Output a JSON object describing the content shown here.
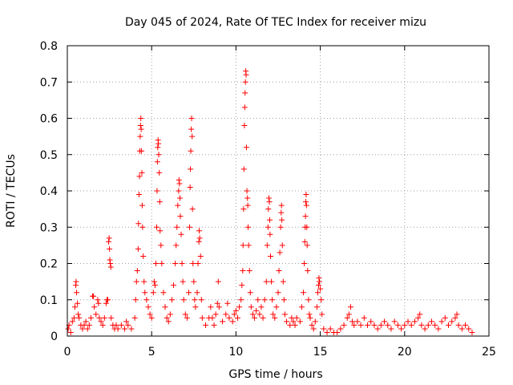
{
  "chart_data": {
    "type": "scatter",
    "title": "Day 045 of 2024, Rate Of TEC Index for receiver mizu",
    "xlabel": "GPS time / hours",
    "ylabel": "ROTI / TECUs",
    "xlim": [
      0,
      25
    ],
    "ylim": [
      0,
      0.8
    ],
    "xticks": [
      0,
      5,
      10,
      15,
      20,
      25
    ],
    "yticks": [
      0,
      0.1,
      0.2,
      0.3,
      0.4,
      0.5,
      0.6,
      0.7,
      0.8
    ],
    "xtick_labels": [
      "0",
      "5",
      "10",
      "15",
      "20",
      "25"
    ],
    "ytick_labels": [
      "0",
      "0.1",
      "0.2",
      "0.3",
      "0.4",
      "0.5",
      "0.6",
      "0.7",
      "0.8"
    ],
    "grid": true,
    "marker": "+",
    "color": "#ff0000",
    "series": [
      {
        "name": "ROTI",
        "points": [
          [
            0.05,
            0.02
          ],
          [
            0.1,
            0.03
          ],
          [
            0.2,
            0.01
          ],
          [
            0.3,
            0.04
          ],
          [
            0.4,
            0.05
          ],
          [
            0.45,
            0.08
          ],
          [
            0.5,
            0.14
          ],
          [
            0.52,
            0.15
          ],
          [
            0.55,
            0.12
          ],
          [
            0.6,
            0.09
          ],
          [
            0.65,
            0.06
          ],
          [
            0.7,
            0.05
          ],
          [
            0.8,
            0.03
          ],
          [
            0.9,
            0.02
          ],
          [
            1.0,
            0.03
          ],
          [
            1.1,
            0.04
          ],
          [
            1.2,
            0.02
          ],
          [
            1.3,
            0.03
          ],
          [
            1.4,
            0.05
          ],
          [
            1.5,
            0.11
          ],
          [
            1.55,
            0.11
          ],
          [
            1.6,
            0.08
          ],
          [
            1.7,
            0.06
          ],
          [
            1.8,
            0.1
          ],
          [
            1.85,
            0.09
          ],
          [
            1.9,
            0.05
          ],
          [
            2.0,
            0.04
          ],
          [
            2.1,
            0.03
          ],
          [
            2.2,
            0.05
          ],
          [
            2.3,
            0.09
          ],
          [
            2.35,
            0.1
          ],
          [
            2.4,
            0.1
          ],
          [
            2.45,
            0.26
          ],
          [
            2.48,
            0.27
          ],
          [
            2.5,
            0.24
          ],
          [
            2.52,
            0.21
          ],
          [
            2.55,
            0.2
          ],
          [
            2.58,
            0.19
          ],
          [
            2.6,
            0.05
          ],
          [
            2.7,
            0.03
          ],
          [
            2.8,
            0.02
          ],
          [
            2.9,
            0.03
          ],
          [
            3.0,
            0.02
          ],
          [
            3.2,
            0.03
          ],
          [
            3.4,
            0.02
          ],
          [
            3.5,
            0.04
          ],
          [
            3.6,
            0.03
          ],
          [
            3.8,
            0.02
          ],
          [
            4.0,
            0.05
          ],
          [
            4.05,
            0.1
          ],
          [
            4.1,
            0.15
          ],
          [
            4.15,
            0.18
          ],
          [
            4.2,
            0.24
          ],
          [
            4.22,
            0.31
          ],
          [
            4.25,
            0.39
          ],
          [
            4.28,
            0.44
          ],
          [
            4.3,
            0.51
          ],
          [
            4.32,
            0.55
          ],
          [
            4.34,
            0.58
          ],
          [
            4.36,
            0.6
          ],
          [
            4.38,
            0.57
          ],
          [
            4.4,
            0.51
          ],
          [
            4.42,
            0.45
          ],
          [
            4.44,
            0.36
          ],
          [
            4.46,
            0.3
          ],
          [
            4.5,
            0.22
          ],
          [
            4.55,
            0.15
          ],
          [
            4.6,
            0.12
          ],
          [
            4.7,
            0.1
          ],
          [
            4.8,
            0.08
          ],
          [
            4.9,
            0.06
          ],
          [
            5.0,
            0.05
          ],
          [
            5.1,
            0.12
          ],
          [
            5.15,
            0.15
          ],
          [
            5.2,
            0.14
          ],
          [
            5.25,
            0.2
          ],
          [
            5.3,
            0.3
          ],
          [
            5.32,
            0.4
          ],
          [
            5.34,
            0.48
          ],
          [
            5.36,
            0.52
          ],
          [
            5.38,
            0.54
          ],
          [
            5.4,
            0.53
          ],
          [
            5.42,
            0.5
          ],
          [
            5.45,
            0.45
          ],
          [
            5.48,
            0.37
          ],
          [
            5.5,
            0.29
          ],
          [
            5.55,
            0.25
          ],
          [
            5.6,
            0.2
          ],
          [
            5.7,
            0.12
          ],
          [
            5.8,
            0.08
          ],
          [
            5.9,
            0.05
          ],
          [
            6.0,
            0.04
          ],
          [
            6.1,
            0.06
          ],
          [
            6.2,
            0.1
          ],
          [
            6.3,
            0.14
          ],
          [
            6.4,
            0.2
          ],
          [
            6.45,
            0.25
          ],
          [
            6.5,
            0.3
          ],
          [
            6.55,
            0.36
          ],
          [
            6.6,
            0.4
          ],
          [
            6.62,
            0.43
          ],
          [
            6.65,
            0.42
          ],
          [
            6.68,
            0.38
          ],
          [
            6.7,
            0.33
          ],
          [
            6.75,
            0.28
          ],
          [
            6.8,
            0.2
          ],
          [
            6.85,
            0.15
          ],
          [
            6.9,
            0.1
          ],
          [
            7.0,
            0.06
          ],
          [
            7.1,
            0.05
          ],
          [
            7.2,
            0.12
          ],
          [
            7.25,
            0.3
          ],
          [
            7.28,
            0.41
          ],
          [
            7.3,
            0.46
          ],
          [
            7.32,
            0.51
          ],
          [
            7.35,
            0.57
          ],
          [
            7.37,
            0.6
          ],
          [
            7.4,
            0.55
          ],
          [
            7.42,
            0.35
          ],
          [
            7.45,
            0.2
          ],
          [
            7.5,
            0.15
          ],
          [
            7.55,
            0.1
          ],
          [
            7.6,
            0.08
          ],
          [
            7.7,
            0.12
          ],
          [
            7.75,
            0.2
          ],
          [
            7.8,
            0.26
          ],
          [
            7.82,
            0.29
          ],
          [
            7.85,
            0.27
          ],
          [
            7.9,
            0.22
          ],
          [
            7.95,
            0.1
          ],
          [
            8.0,
            0.05
          ],
          [
            8.2,
            0.03
          ],
          [
            8.4,
            0.05
          ],
          [
            8.5,
            0.08
          ],
          [
            8.6,
            0.05
          ],
          [
            8.7,
            0.03
          ],
          [
            8.8,
            0.06
          ],
          [
            8.9,
            0.09
          ],
          [
            8.95,
            0.15
          ],
          [
            9.0,
            0.08
          ],
          [
            9.2,
            0.04
          ],
          [
            9.4,
            0.06
          ],
          [
            9.5,
            0.09
          ],
          [
            9.6,
            0.05
          ],
          [
            9.8,
            0.04
          ],
          [
            9.9,
            0.06
          ],
          [
            10.0,
            0.07
          ],
          [
            10.1,
            0.05
          ],
          [
            10.2,
            0.08
          ],
          [
            10.3,
            0.1
          ],
          [
            10.35,
            0.14
          ],
          [
            10.4,
            0.18
          ],
          [
            10.42,
            0.25
          ],
          [
            10.45,
            0.35
          ],
          [
            10.47,
            0.46
          ],
          [
            10.5,
            0.58
          ],
          [
            10.52,
            0.63
          ],
          [
            10.54,
            0.67
          ],
          [
            10.56,
            0.7
          ],
          [
            10.58,
            0.73
          ],
          [
            10.6,
            0.72
          ],
          [
            10.62,
            0.52
          ],
          [
            10.65,
            0.4
          ],
          [
            10.68,
            0.38
          ],
          [
            10.7,
            0.36
          ],
          [
            10.72,
            0.3
          ],
          [
            10.75,
            0.25
          ],
          [
            10.8,
            0.18
          ],
          [
            10.85,
            0.12
          ],
          [
            10.9,
            0.08
          ],
          [
            11.0,
            0.06
          ],
          [
            11.1,
            0.05
          ],
          [
            11.2,
            0.07
          ],
          [
            11.3,
            0.1
          ],
          [
            11.4,
            0.06
          ],
          [
            11.5,
            0.08
          ],
          [
            11.6,
            0.05
          ],
          [
            11.7,
            0.1
          ],
          [
            11.8,
            0.15
          ],
          [
            11.85,
            0.25
          ],
          [
            11.9,
            0.3
          ],
          [
            11.92,
            0.35
          ],
          [
            11.95,
            0.38
          ],
          [
            11.98,
            0.37
          ],
          [
            12.0,
            0.32
          ],
          [
            12.02,
            0.28
          ],
          [
            12.05,
            0.22
          ],
          [
            12.1,
            0.15
          ],
          [
            12.15,
            0.1
          ],
          [
            12.2,
            0.06
          ],
          [
            12.3,
            0.05
          ],
          [
            12.4,
            0.08
          ],
          [
            12.5,
            0.12
          ],
          [
            12.55,
            0.18
          ],
          [
            12.6,
            0.23
          ],
          [
            12.65,
            0.3
          ],
          [
            12.68,
            0.34
          ],
          [
            12.7,
            0.36
          ],
          [
            12.72,
            0.32
          ],
          [
            12.75,
            0.25
          ],
          [
            12.8,
            0.15
          ],
          [
            12.85,
            0.1
          ],
          [
            12.9,
            0.06
          ],
          [
            13.0,
            0.04
          ],
          [
            13.2,
            0.03
          ],
          [
            13.3,
            0.05
          ],
          [
            13.4,
            0.04
          ],
          [
            13.5,
            0.03
          ],
          [
            13.6,
            0.05
          ],
          [
            13.8,
            0.04
          ],
          [
            13.9,
            0.08
          ],
          [
            14.0,
            0.12
          ],
          [
            14.05,
            0.2
          ],
          [
            14.08,
            0.26
          ],
          [
            14.1,
            0.3
          ],
          [
            14.12,
            0.33
          ],
          [
            14.14,
            0.37
          ],
          [
            14.16,
            0.39
          ],
          [
            14.18,
            0.36
          ],
          [
            14.2,
            0.3
          ],
          [
            14.22,
            0.25
          ],
          [
            14.25,
            0.18
          ],
          [
            14.3,
            0.1
          ],
          [
            14.35,
            0.06
          ],
          [
            14.4,
            0.05
          ],
          [
            14.5,
            0.03
          ],
          [
            14.6,
            0.02
          ],
          [
            14.7,
            0.04
          ],
          [
            14.8,
            0.08
          ],
          [
            14.85,
            0.12
          ],
          [
            14.9,
            0.14
          ],
          [
            14.92,
            0.16
          ],
          [
            14.95,
            0.15
          ],
          [
            15.0,
            0.13
          ],
          [
            15.05,
            0.1
          ],
          [
            15.1,
            0.06
          ],
          [
            15.2,
            0.02
          ],
          [
            15.4,
            0.01
          ],
          [
            15.6,
            0.02
          ],
          [
            15.8,
            0.01
          ],
          [
            16.0,
            0.01
          ],
          [
            16.2,
            0.02
          ],
          [
            16.4,
            0.03
          ],
          [
            16.6,
            0.05
          ],
          [
            16.7,
            0.06
          ],
          [
            16.8,
            0.08
          ],
          [
            16.9,
            0.04
          ],
          [
            17.0,
            0.03
          ],
          [
            17.2,
            0.04
          ],
          [
            17.4,
            0.03
          ],
          [
            17.6,
            0.05
          ],
          [
            17.8,
            0.03
          ],
          [
            18.0,
            0.04
          ],
          [
            18.2,
            0.03
          ],
          [
            18.4,
            0.02
          ],
          [
            18.6,
            0.03
          ],
          [
            18.8,
            0.04
          ],
          [
            19.0,
            0.03
          ],
          [
            19.2,
            0.02
          ],
          [
            19.4,
            0.04
          ],
          [
            19.6,
            0.03
          ],
          [
            19.8,
            0.02
          ],
          [
            20.0,
            0.03
          ],
          [
            20.2,
            0.04
          ],
          [
            20.4,
            0.03
          ],
          [
            20.6,
            0.04
          ],
          [
            20.8,
            0.05
          ],
          [
            20.9,
            0.06
          ],
          [
            21.0,
            0.03
          ],
          [
            21.2,
            0.02
          ],
          [
            21.4,
            0.03
          ],
          [
            21.6,
            0.04
          ],
          [
            21.8,
            0.03
          ],
          [
            22.0,
            0.02
          ],
          [
            22.2,
            0.04
          ],
          [
            22.4,
            0.05
          ],
          [
            22.6,
            0.03
          ],
          [
            22.8,
            0.04
          ],
          [
            23.0,
            0.05
          ],
          [
            23.1,
            0.06
          ],
          [
            23.2,
            0.03
          ],
          [
            23.4,
            0.02
          ],
          [
            23.6,
            0.03
          ],
          [
            23.8,
            0.02
          ],
          [
            24.0,
            0.01
          ]
        ]
      }
    ]
  }
}
